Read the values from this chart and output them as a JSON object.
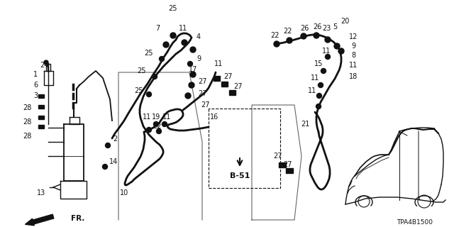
{
  "bg_color": "#ffffff",
  "line_color": "#111111",
  "text_color": "#111111",
  "diagram_code": "TPA4B1500",
  "fig_width": 6.4,
  "fig_height": 3.2,
  "dpi": 100
}
